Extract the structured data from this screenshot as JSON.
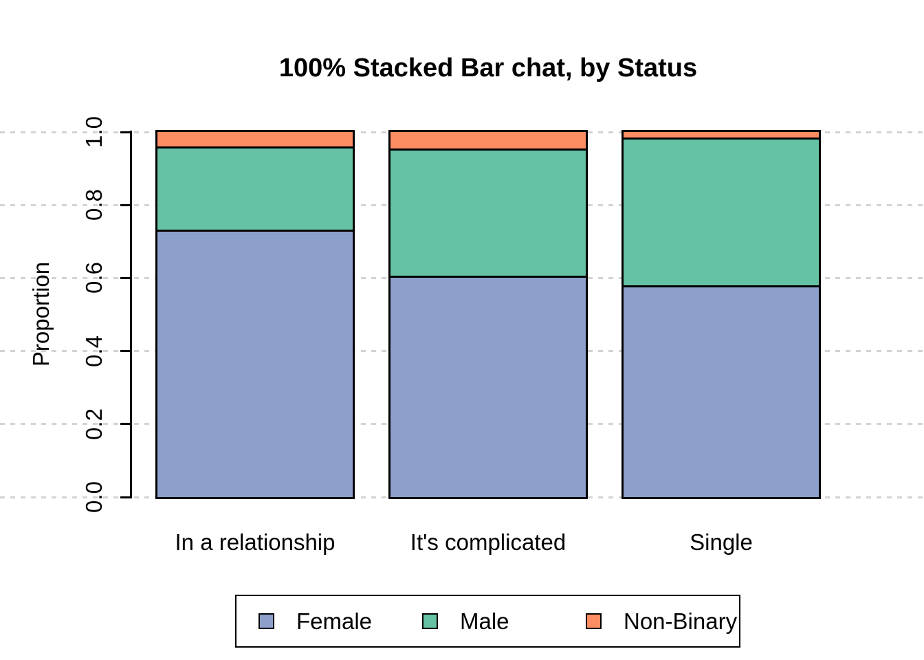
{
  "chart_data": {
    "type": "bar",
    "variant": "100%-stacked",
    "title": "100% Stacked Bar chat, by Status",
    "xlabel": "",
    "ylabel": "Proportion",
    "ylim": [
      0,
      1
    ],
    "y_ticks": [
      "0.0",
      "0.2",
      "0.4",
      "0.6",
      "0.8",
      "1.0"
    ],
    "grid": "horizontal dotted lightgray, full width",
    "legend_position": "bottom center, boxed",
    "categories": [
      "In a relationship",
      "It's complicated",
      "Single"
    ],
    "series": [
      {
        "name": "Female",
        "color": "#8DA0CB",
        "values": [
          0.727,
          0.6,
          0.574
        ]
      },
      {
        "name": "Male",
        "color": "#66C2A5",
        "values": [
          0.228,
          0.35,
          0.406
        ]
      },
      {
        "name": "Non-Binary",
        "color": "#FC8D62",
        "values": [
          0.045,
          0.05,
          0.02
        ]
      }
    ],
    "colors": {
      "grid": "#D3D3D3",
      "axis": "#000000",
      "bar_border": "#000000",
      "background": "#FFFFFF",
      "text": "#000000"
    }
  }
}
